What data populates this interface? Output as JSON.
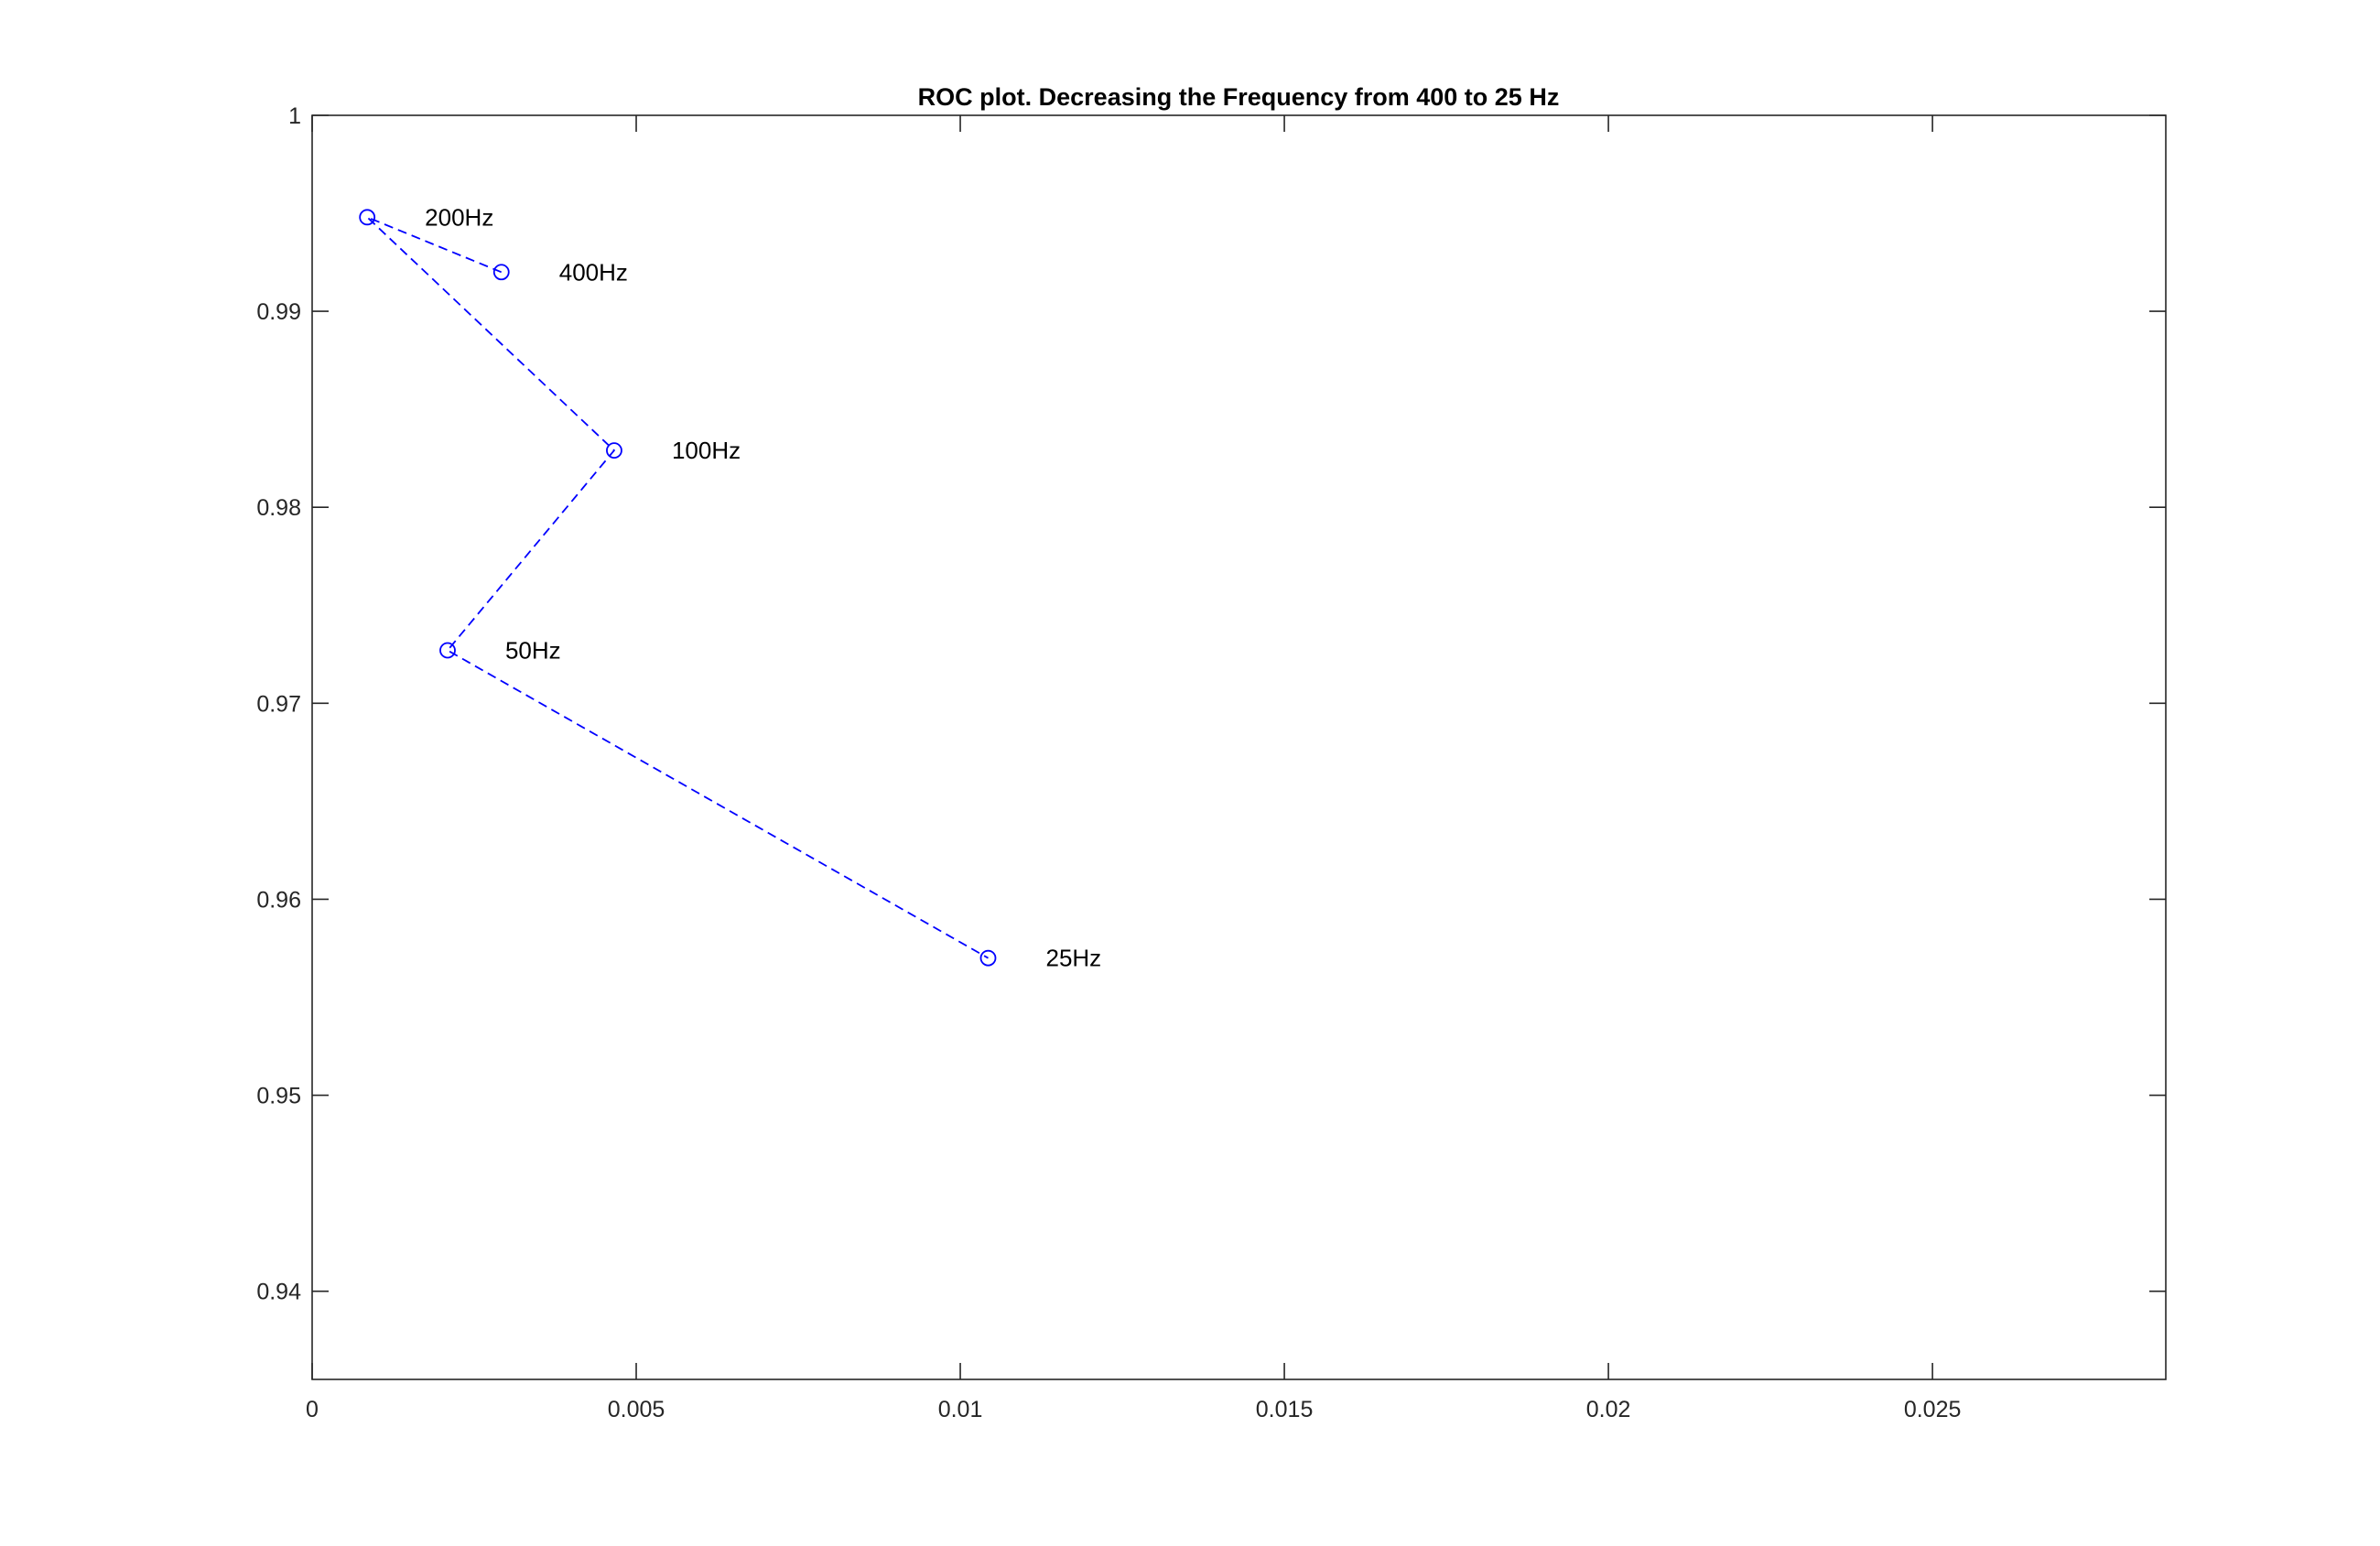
{
  "chart_data": {
    "type": "line",
    "title": "ROC plot. Decreasing the Frequency from 400 to 25 Hz",
    "xlabel": "",
    "ylabel": "",
    "xlim": [
      0,
      0.0286
    ],
    "ylim": [
      0.9355,
      1.0
    ],
    "x_ticks": [
      0,
      0.005,
      0.01,
      0.015,
      0.02,
      0.025
    ],
    "x_tick_labels": [
      "0",
      "0.005",
      "0.01",
      "0.015",
      "0.02",
      "0.025"
    ],
    "y_ticks": [
      0.94,
      0.95,
      0.96,
      0.97,
      0.98,
      0.99,
      1.0
    ],
    "y_tick_labels": [
      "0.94",
      "0.95",
      "0.96",
      "0.97",
      "0.98",
      "0.99",
      "1"
    ],
    "grid": false,
    "box": true,
    "series": [
      {
        "color": "#0000ff",
        "line_style": "dashed",
        "marker": "circle",
        "points": [
          {
            "x": 0.00292,
            "y": 0.992,
            "label": "400Hz"
          },
          {
            "x": 0.00085,
            "y": 0.9948,
            "label": "200Hz"
          },
          {
            "x": 0.00466,
            "y": 0.9829,
            "label": "100Hz"
          },
          {
            "x": 0.00209,
            "y": 0.9727,
            "label": "50Hz"
          },
          {
            "x": 0.01043,
            "y": 0.957,
            "label": "25Hz"
          }
        ]
      }
    ]
  }
}
